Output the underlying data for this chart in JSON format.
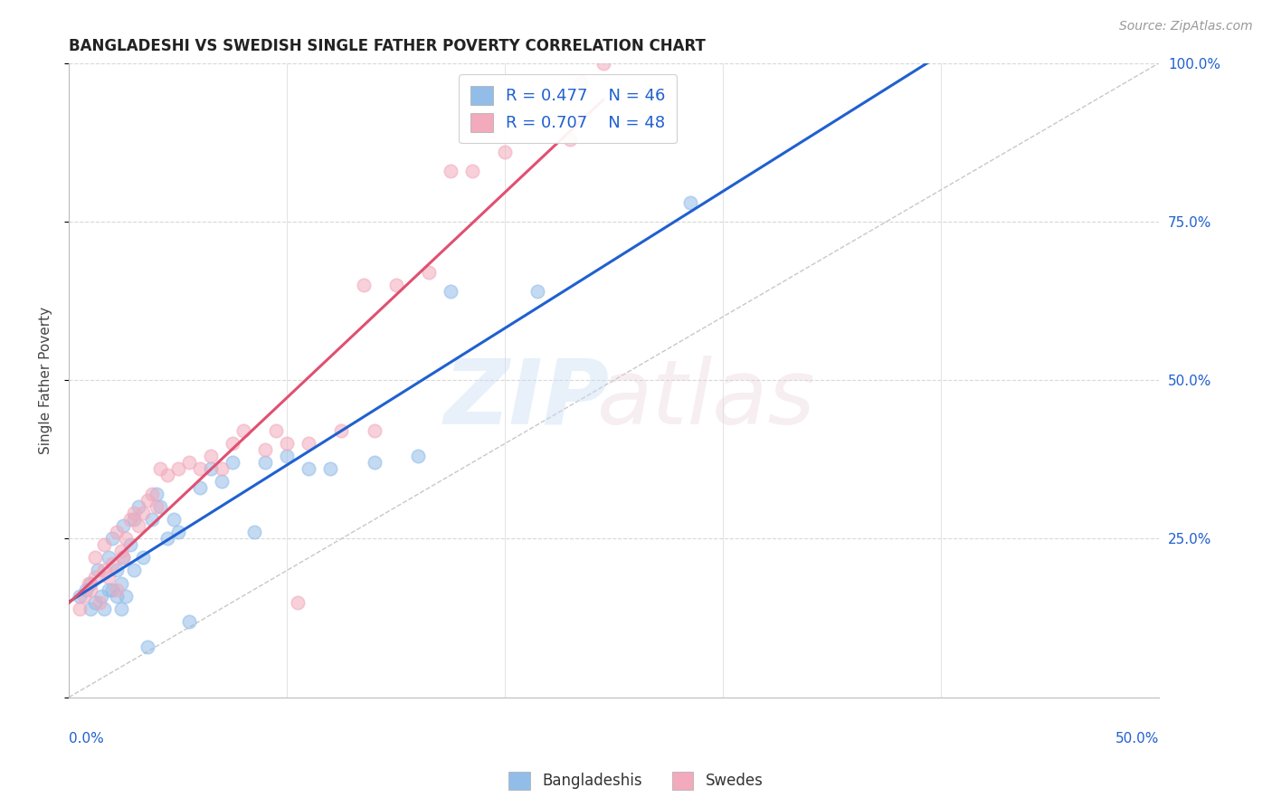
{
  "title": "BANGLADESHI VS SWEDISH SINGLE FATHER POVERTY CORRELATION CHART",
  "source": "Source: ZipAtlas.com",
  "ylabel": "Single Father Poverty",
  "xlim": [
    0.0,
    0.5
  ],
  "ylim": [
    0.0,
    1.0
  ],
  "legend_r1": "R = 0.477",
  "legend_n1": "N = 46",
  "legend_r2": "R = 0.707",
  "legend_n2": "N = 48",
  "blue_color": "#92bde8",
  "pink_color": "#f2aabc",
  "blue_line_color": "#2060d0",
  "pink_line_color": "#e05070",
  "diag_color": "#c8c8c8",
  "background_color": "#ffffff",
  "grid_color": "#d8d8d8",
  "bangladeshi_x": [
    0.005,
    0.008,
    0.01,
    0.01,
    0.012,
    0.013,
    0.015,
    0.016,
    0.018,
    0.018,
    0.02,
    0.02,
    0.022,
    0.022,
    0.024,
    0.024,
    0.025,
    0.025,
    0.026,
    0.028,
    0.03,
    0.03,
    0.032,
    0.034,
    0.036,
    0.038,
    0.04,
    0.042,
    0.045,
    0.048,
    0.05,
    0.055,
    0.06,
    0.065,
    0.07,
    0.075,
    0.085,
    0.09,
    0.1,
    0.11,
    0.12,
    0.14,
    0.16,
    0.175,
    0.215,
    0.285
  ],
  "bangladeshi_y": [
    0.16,
    0.17,
    0.14,
    0.18,
    0.15,
    0.2,
    0.16,
    0.14,
    0.17,
    0.22,
    0.17,
    0.25,
    0.16,
    0.2,
    0.14,
    0.18,
    0.22,
    0.27,
    0.16,
    0.24,
    0.2,
    0.28,
    0.3,
    0.22,
    0.08,
    0.28,
    0.32,
    0.3,
    0.25,
    0.28,
    0.26,
    0.12,
    0.33,
    0.36,
    0.34,
    0.37,
    0.26,
    0.37,
    0.38,
    0.36,
    0.36,
    0.37,
    0.38,
    0.64,
    0.64,
    0.78
  ],
  "swedish_x": [
    0.005,
    0.007,
    0.009,
    0.01,
    0.012,
    0.012,
    0.014,
    0.016,
    0.016,
    0.018,
    0.02,
    0.022,
    0.022,
    0.024,
    0.025,
    0.026,
    0.028,
    0.03,
    0.032,
    0.034,
    0.036,
    0.038,
    0.04,
    0.042,
    0.045,
    0.05,
    0.055,
    0.06,
    0.065,
    0.07,
    0.075,
    0.08,
    0.09,
    0.095,
    0.1,
    0.105,
    0.11,
    0.125,
    0.135,
    0.14,
    0.15,
    0.165,
    0.175,
    0.185,
    0.2,
    0.23,
    0.235,
    0.245
  ],
  "swedish_y": [
    0.14,
    0.16,
    0.18,
    0.17,
    0.19,
    0.22,
    0.15,
    0.2,
    0.24,
    0.19,
    0.21,
    0.17,
    0.26,
    0.23,
    0.22,
    0.25,
    0.28,
    0.29,
    0.27,
    0.29,
    0.31,
    0.32,
    0.3,
    0.36,
    0.35,
    0.36,
    0.37,
    0.36,
    0.38,
    0.36,
    0.4,
    0.42,
    0.39,
    0.42,
    0.4,
    0.15,
    0.4,
    0.42,
    0.65,
    0.42,
    0.65,
    0.67,
    0.83,
    0.83,
    0.86,
    0.88,
    0.97,
    1.0
  ]
}
